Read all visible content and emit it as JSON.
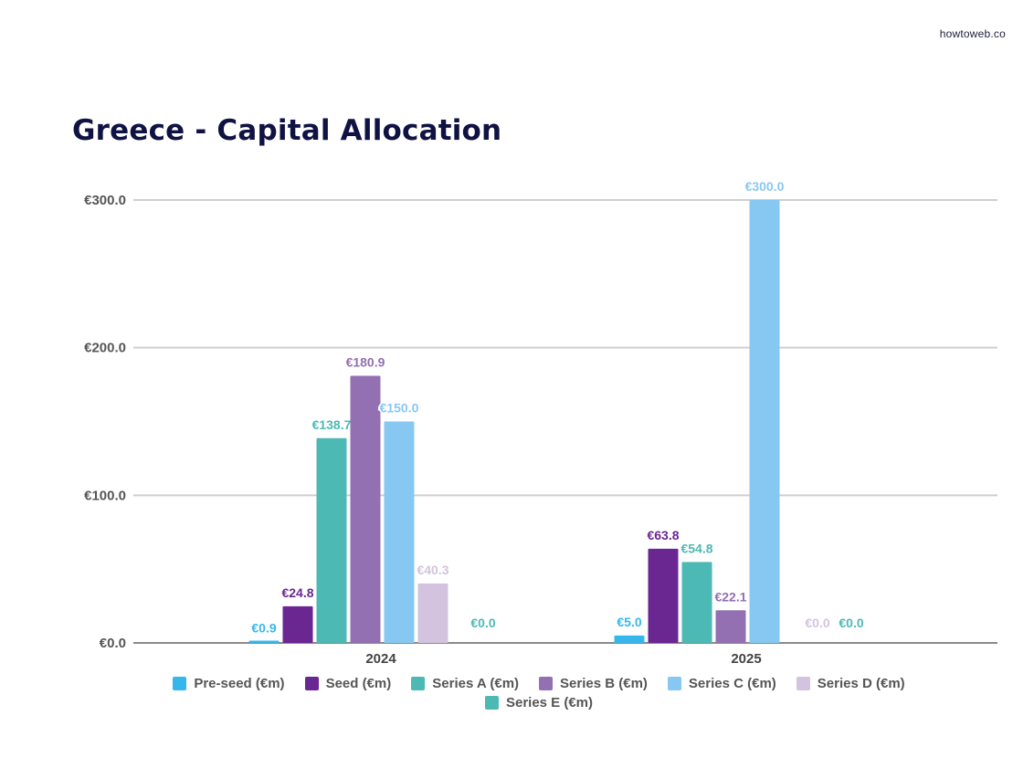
{
  "brand": "howtoweb.co",
  "page_title": "Greece - Capital Allocation",
  "chart_data": {
    "type": "bar",
    "title": "Greece - Capital Allocation",
    "xlabel": "",
    "ylabel": "",
    "categories": [
      "2024",
      "2025"
    ],
    "ylim": [
      0,
      300
    ],
    "yticks": [
      0,
      100,
      200,
      300
    ],
    "ytick_labels": [
      "€0.0",
      "€100.0",
      "€200.0",
      "€300.0"
    ],
    "grid": true,
    "legend_position": "bottom",
    "series": [
      {
        "name": "Pre-seed (€m)",
        "color": "#35b7ec",
        "values": [
          0.9,
          5.0
        ],
        "labels": [
          "€0.9",
          "€5.0"
        ]
      },
      {
        "name": "Seed (€m)",
        "color": "#6a2691",
        "values": [
          24.8,
          63.8
        ],
        "labels": [
          "€24.8",
          "€63.8"
        ]
      },
      {
        "name": "Series A (€m)",
        "color": "#4db9b4",
        "values": [
          138.7,
          54.8
        ],
        "labels": [
          "€138.7",
          "€54.8"
        ]
      },
      {
        "name": "Series B (€m)",
        "color": "#9270b2",
        "values": [
          180.9,
          22.1
        ],
        "labels": [
          "€180.9",
          "€22.1"
        ]
      },
      {
        "name": "Series C (€m)",
        "color": "#87c8f2",
        "values": [
          150.0,
          300.0
        ],
        "labels": [
          "€150.0",
          "€300.0"
        ]
      },
      {
        "name": "Series D (€m)",
        "color": "#d3c3de",
        "values": [
          40.3,
          0.0
        ],
        "labels": [
          "€40.3",
          "€0.0"
        ]
      },
      {
        "name": "Series E (€m)",
        "color": "#4db9b4",
        "values": [
          0.0,
          0.0
        ],
        "labels": [
          "€0.0",
          "€0.0"
        ]
      }
    ]
  }
}
